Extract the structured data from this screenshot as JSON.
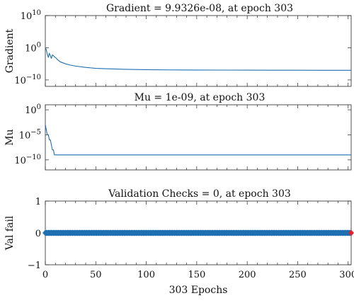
{
  "chart_data": [
    {
      "type": "line",
      "title": "Gradient = 9.9326e-08, at epoch 303",
      "ylabel": "Gradient",
      "xlabel": "",
      "yscale": "log",
      "xlim": [
        0,
        303
      ],
      "ylim": [
        1e-12,
        10000000000.0
      ],
      "yticks": [
        {
          "value": 10000000000.0,
          "base": "10",
          "exp": "10"
        },
        {
          "value": 1,
          "base": "10",
          "exp": "0"
        },
        {
          "value": 1e-10,
          "base": "10",
          "exp": "−10"
        }
      ],
      "series_color": "#1f6fb2",
      "x": [
        0,
        1,
        2,
        3,
        4,
        5,
        6,
        7,
        8,
        9,
        10,
        11,
        12,
        15,
        20,
        25,
        30,
        40,
        50,
        60,
        80,
        100,
        125,
        150,
        175,
        200,
        225,
        250,
        275,
        303
      ],
      "y": [
        1.0,
        0.2,
        0.01,
        0.001,
        0.02,
        0.003,
        0.0005,
        0.006,
        0.004,
        0.0015,
        0.001,
        0.0005,
        0.0002,
        4e-05,
        1e-05,
        4e-06,
        2e-06,
        8e-07,
        4e-07,
        3e-07,
        2e-07,
        1.5e-07,
        1.3e-07,
        1.2e-07,
        1.15e-07,
        1.1e-07,
        1.05e-07,
        1.02e-07,
        1e-07,
        9.9326e-08
      ]
    },
    {
      "type": "line",
      "title": "Mu = 1e-09, at epoch 303",
      "ylabel": "Mu",
      "xlabel": "",
      "yscale": "log",
      "xlim": [
        0,
        303
      ],
      "ylim": [
        1e-12,
        10
      ],
      "yticks": [
        {
          "value": 1,
          "base": "10",
          "exp": "0"
        },
        {
          "value": 1e-05,
          "base": "10",
          "exp": "−5"
        },
        {
          "value": 1e-10,
          "base": "10",
          "exp": "−10"
        }
      ],
      "series_color": "#1f6fb2",
      "x": [
        0,
        1,
        2,
        3,
        4,
        5,
        6,
        7,
        8,
        9,
        10,
        303
      ],
      "y": [
        0.001,
        0.0001,
        1e-05,
        1e-05,
        1e-06,
        1e-06,
        1e-07,
        1e-08,
        1e-08,
        1e-09,
        1e-09,
        1e-09
      ]
    },
    {
      "type": "scatter",
      "title": "Validation Checks = 0, at epoch 303",
      "ylabel": "Val fail",
      "xlabel": "303 Epochs",
      "yscale": "linear",
      "xlim": [
        0,
        303
      ],
      "ylim": [
        -1,
        1
      ],
      "yticks": [
        {
          "value": 1,
          "label": "1"
        },
        {
          "value": 0,
          "label": "0"
        },
        {
          "value": -1,
          "label": "−1"
        }
      ],
      "xticks": [
        0,
        50,
        100,
        150,
        200,
        250,
        300
      ],
      "series_color": "#1f6fb2",
      "end_marker_color": "#e0212c",
      "epochs": 303,
      "value": 0
    }
  ]
}
